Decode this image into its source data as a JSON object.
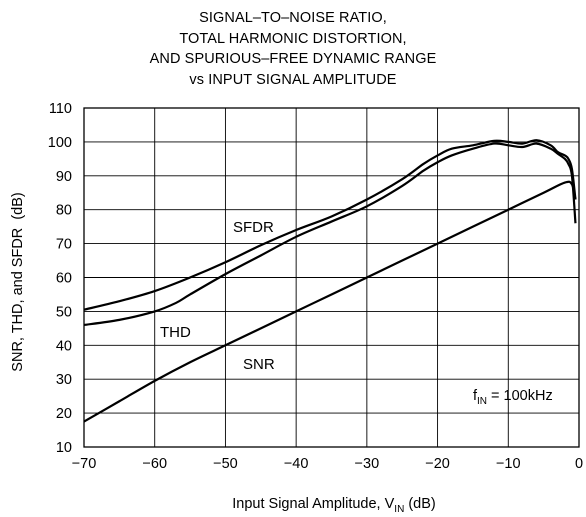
{
  "chart_data": {
    "type": "line",
    "title": [
      "SIGNAL–TO–NOISE RATIO,",
      "TOTAL HARMONIC DISTORTION,",
      "AND SPURIOUS–FREE DYNAMIC RANGE",
      "vs INPUT SIGNAL AMPLITUDE"
    ],
    "xlabel": {
      "main": "Input Signal Amplitude, V",
      "sub": "IN",
      "unit": " (dB)"
    },
    "ylabel": "SNR, THD, and SFDR  (dB)",
    "xlim": [
      -70,
      0
    ],
    "ylim": [
      10,
      110
    ],
    "xticks": [
      -70,
      -60,
      -50,
      -40,
      -30,
      -20,
      -10,
      0
    ],
    "xtick_labels": [
      "−70",
      "−60",
      "−50",
      "−40",
      "−30",
      "−20",
      "−10",
      "0"
    ],
    "yticks": [
      10,
      20,
      30,
      40,
      50,
      60,
      70,
      80,
      90,
      100,
      110
    ],
    "ytick_labels": [
      "10",
      "20",
      "30",
      "40",
      "50",
      "60",
      "70",
      "80",
      "90",
      "100",
      "110"
    ],
    "grid": true,
    "annotation": {
      "main": "f",
      "sub": "IN",
      "rest": " = 100kHz"
    },
    "series": [
      {
        "name": "SFDR",
        "x": [
          -70,
          -65,
          -60,
          -55,
          -50,
          -45,
          -40,
          -35,
          -30,
          -25,
          -22,
          -20,
          -18,
          -15,
          -12,
          -10,
          -8,
          -6,
          -4,
          -3,
          -2,
          -1.5,
          -1,
          -0.5
        ],
        "values": [
          50.5,
          53,
          56,
          60,
          64.5,
          69.5,
          74,
          78,
          83,
          89,
          93.5,
          96,
          98,
          99,
          100.3,
          100,
          99.5,
          100.5,
          99,
          97,
          96,
          95,
          92,
          83
        ]
      },
      {
        "name": "THD",
        "x": [
          -70,
          -65,
          -60,
          -57,
          -55,
          -50,
          -45,
          -40,
          -35,
          -30,
          -25,
          -22,
          -20,
          -18,
          -15,
          -12,
          -10,
          -8,
          -6,
          -4,
          -3,
          -2,
          -1.5,
          -1,
          -0.5
        ],
        "values": [
          46,
          47.5,
          50,
          52.5,
          55,
          61,
          66.5,
          72,
          76.5,
          81,
          87,
          91.5,
          94,
          96,
          98,
          99.5,
          99,
          98.5,
          99.5,
          98,
          96.5,
          95,
          93.5,
          90,
          76
        ]
      },
      {
        "name": "SNR",
        "x": [
          -70,
          -65,
          -60,
          -55,
          -50,
          -45,
          -40,
          -35,
          -30,
          -25,
          -20,
          -15,
          -10,
          -5,
          -2,
          -1,
          -0.5
        ],
        "values": [
          17.5,
          23.5,
          29.5,
          35,
          40,
          45,
          50,
          55,
          60,
          65,
          70,
          75,
          80,
          85,
          88,
          87.5,
          83
        ]
      }
    ]
  }
}
